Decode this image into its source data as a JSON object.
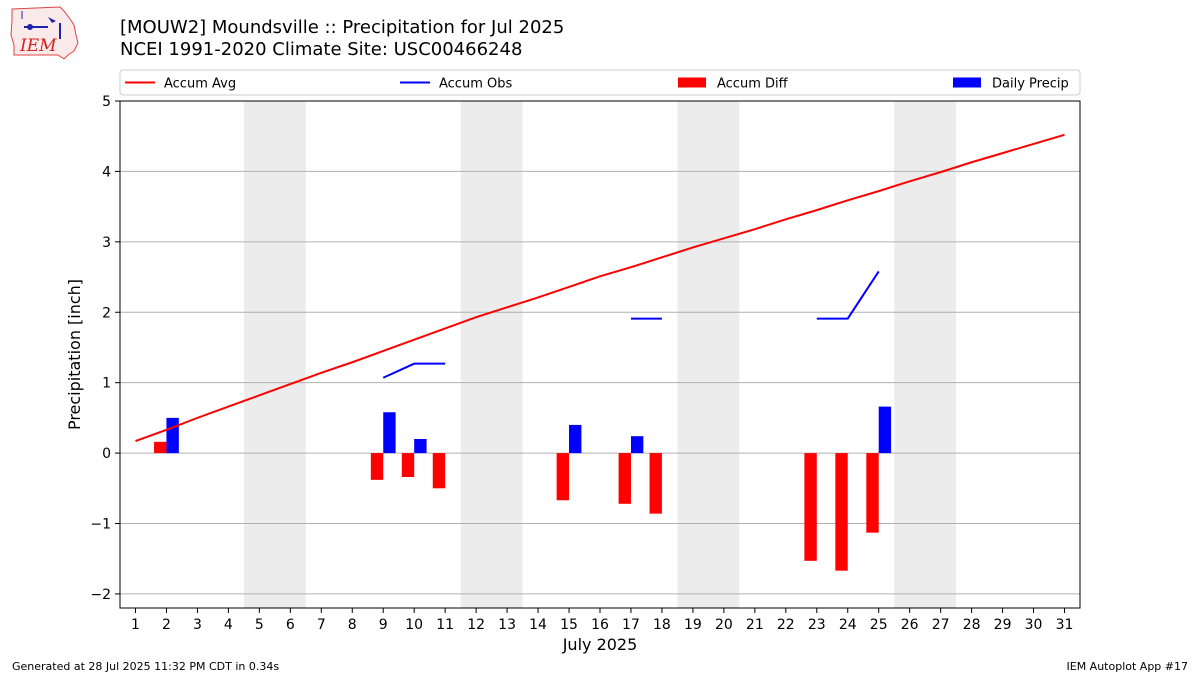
{
  "header": {
    "title_line1": "[MOUW2] Moundsville :: Precipitation for Jul 2025",
    "title_line2": "NCEI 1991-2020 Climate Site: USC00466248"
  },
  "logo": {
    "text": "IEM",
    "icon": "iem-logo-icon"
  },
  "footer": {
    "left": "Generated at 28 Jul 2025 11:32 PM CDT in 0.34s",
    "right": "IEM Autoplot App #17"
  },
  "chart_data": {
    "type": "bar",
    "title": "[MOUW2] Moundsville :: Precipitation for Jul 2025",
    "subtitle": "NCEI 1991-2020 Climate Site: USC00466248",
    "xlabel": "July 2025",
    "ylabel": "Precipitation [inch]",
    "ylim": [
      -2.2,
      5.0
    ],
    "xlim": [
      0.5,
      31.5
    ],
    "yticks": [
      -2,
      -1,
      0,
      1,
      2,
      3,
      4,
      5
    ],
    "ytick_labels": [
      "−2",
      "−1",
      "0",
      "1",
      "2",
      "3",
      "4",
      "5"
    ],
    "days": [
      1,
      2,
      3,
      4,
      5,
      6,
      7,
      8,
      9,
      10,
      11,
      12,
      13,
      14,
      15,
      16,
      17,
      18,
      19,
      20,
      21,
      22,
      23,
      24,
      25,
      26,
      27,
      28,
      29,
      30,
      31
    ],
    "grid": "horizontal",
    "legend_position": "top",
    "weekend_shading": [
      [
        5,
        6
      ],
      [
        12,
        13
      ],
      [
        19,
        20
      ],
      [
        26,
        27
      ]
    ],
    "colors": {
      "avg": "#ff0000",
      "obs": "#0000ff",
      "diff": "#ff0000",
      "daily": "#0000ff",
      "weekend": "#ececec",
      "grid": "#b0b0b0"
    },
    "series": [
      {
        "name": "Accum Avg",
        "kind": "line",
        "color": "#ff0000",
        "values": [
          0.17,
          0.33,
          0.5,
          0.66,
          0.82,
          0.98,
          1.14,
          1.29,
          1.45,
          1.61,
          1.77,
          1.93,
          2.07,
          2.21,
          2.36,
          2.51,
          2.64,
          2.78,
          2.92,
          3.05,
          3.18,
          3.32,
          3.45,
          3.59,
          3.72,
          3.86,
          3.99,
          4.13,
          4.26,
          4.39,
          4.52
        ]
      },
      {
        "name": "Accum Obs",
        "kind": "line",
        "color": "#0000ff",
        "values": [
          null,
          null,
          null,
          null,
          null,
          null,
          null,
          null,
          1.07,
          1.27,
          1.27,
          null,
          null,
          null,
          null,
          null,
          1.91,
          1.91,
          null,
          null,
          null,
          null,
          1.91,
          1.91,
          2.58,
          null,
          null,
          null,
          null,
          null,
          null
        ]
      },
      {
        "name": "Accum Diff",
        "kind": "bar",
        "color": "#ff0000",
        "values": [
          null,
          0.16,
          null,
          null,
          null,
          null,
          null,
          null,
          -0.38,
          -0.34,
          -0.5,
          null,
          null,
          null,
          -0.67,
          null,
          -0.72,
          -0.86,
          null,
          null,
          null,
          null,
          -1.53,
          -1.67,
          -1.13,
          null,
          null,
          null,
          null,
          null,
          null
        ]
      },
      {
        "name": "Daily Precip",
        "kind": "bar",
        "color": "#0000ff",
        "values": [
          null,
          0.5,
          null,
          null,
          null,
          null,
          null,
          null,
          0.58,
          0.2,
          null,
          null,
          null,
          null,
          0.4,
          null,
          0.24,
          null,
          null,
          null,
          null,
          null,
          null,
          null,
          0.66,
          null,
          null,
          null,
          null,
          null,
          null
        ]
      }
    ]
  }
}
